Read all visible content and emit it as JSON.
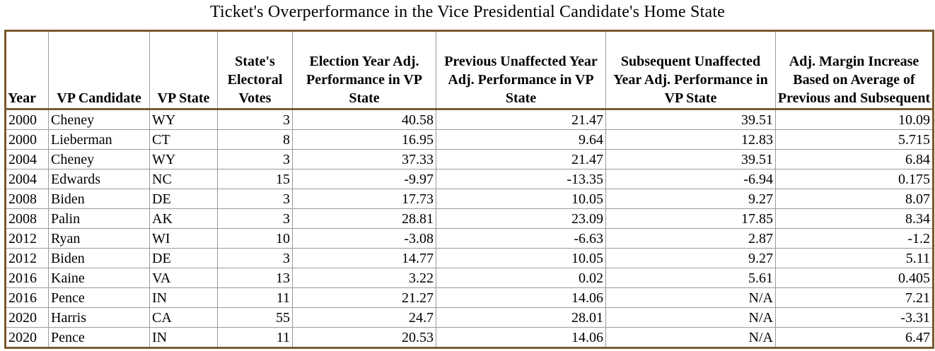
{
  "title": "Ticket's Overperformance in the Vice Presidential Candidate's Home State",
  "columns": [
    "Year",
    "VP Candidate",
    "VP State",
    "State's Electoral Votes",
    "Election Year Adj. Performance in VP State",
    "Previous Unaffected Year Adj. Performance in VP State",
    "Subsequent Unaffected Year Adj. Performance in VP State",
    "Adj. Margin Increase Based on Average of Previous and Subsequent"
  ],
  "rows": [
    [
      "2000",
      "Cheney",
      "WY",
      "3",
      "40.58",
      "21.47",
      "39.51",
      "10.09"
    ],
    [
      "2000",
      "Lieberman",
      "CT",
      "8",
      "16.95",
      "9.64",
      "12.83",
      "5.715"
    ],
    [
      "2004",
      "Cheney",
      "WY",
      "3",
      "37.33",
      "21.47",
      "39.51",
      "6.84"
    ],
    [
      "2004",
      "Edwards",
      "NC",
      "15",
      "-9.97",
      "-13.35",
      "-6.94",
      "0.175"
    ],
    [
      "2008",
      "Biden",
      "DE",
      "3",
      "17.73",
      "10.05",
      "9.27",
      "8.07"
    ],
    [
      "2008",
      "Palin",
      "AK",
      "3",
      "28.81",
      "23.09",
      "17.85",
      "8.34"
    ],
    [
      "2012",
      "Ryan",
      "WI",
      "10",
      "-3.08",
      "-6.63",
      "2.87",
      "-1.2"
    ],
    [
      "2012",
      "Biden",
      "DE",
      "3",
      "14.77",
      "10.05",
      "9.27",
      "5.11"
    ],
    [
      "2016",
      "Kaine",
      "VA",
      "13",
      "3.22",
      "0.02",
      "5.61",
      "0.405"
    ],
    [
      "2016",
      "Pence",
      "IN",
      "11",
      "21.27",
      "14.06",
      "N/A",
      "7.21"
    ],
    [
      "2020",
      "Harris",
      "CA",
      "55",
      "24.7",
      "28.01",
      "N/A",
      "-3.31"
    ],
    [
      "2020",
      "Pence",
      "IN",
      "11",
      "20.53",
      "14.06",
      "N/A",
      "6.47"
    ]
  ],
  "colors": {
    "outer_border": "#7a5a2e",
    "grid": "#9a9a9a"
  }
}
